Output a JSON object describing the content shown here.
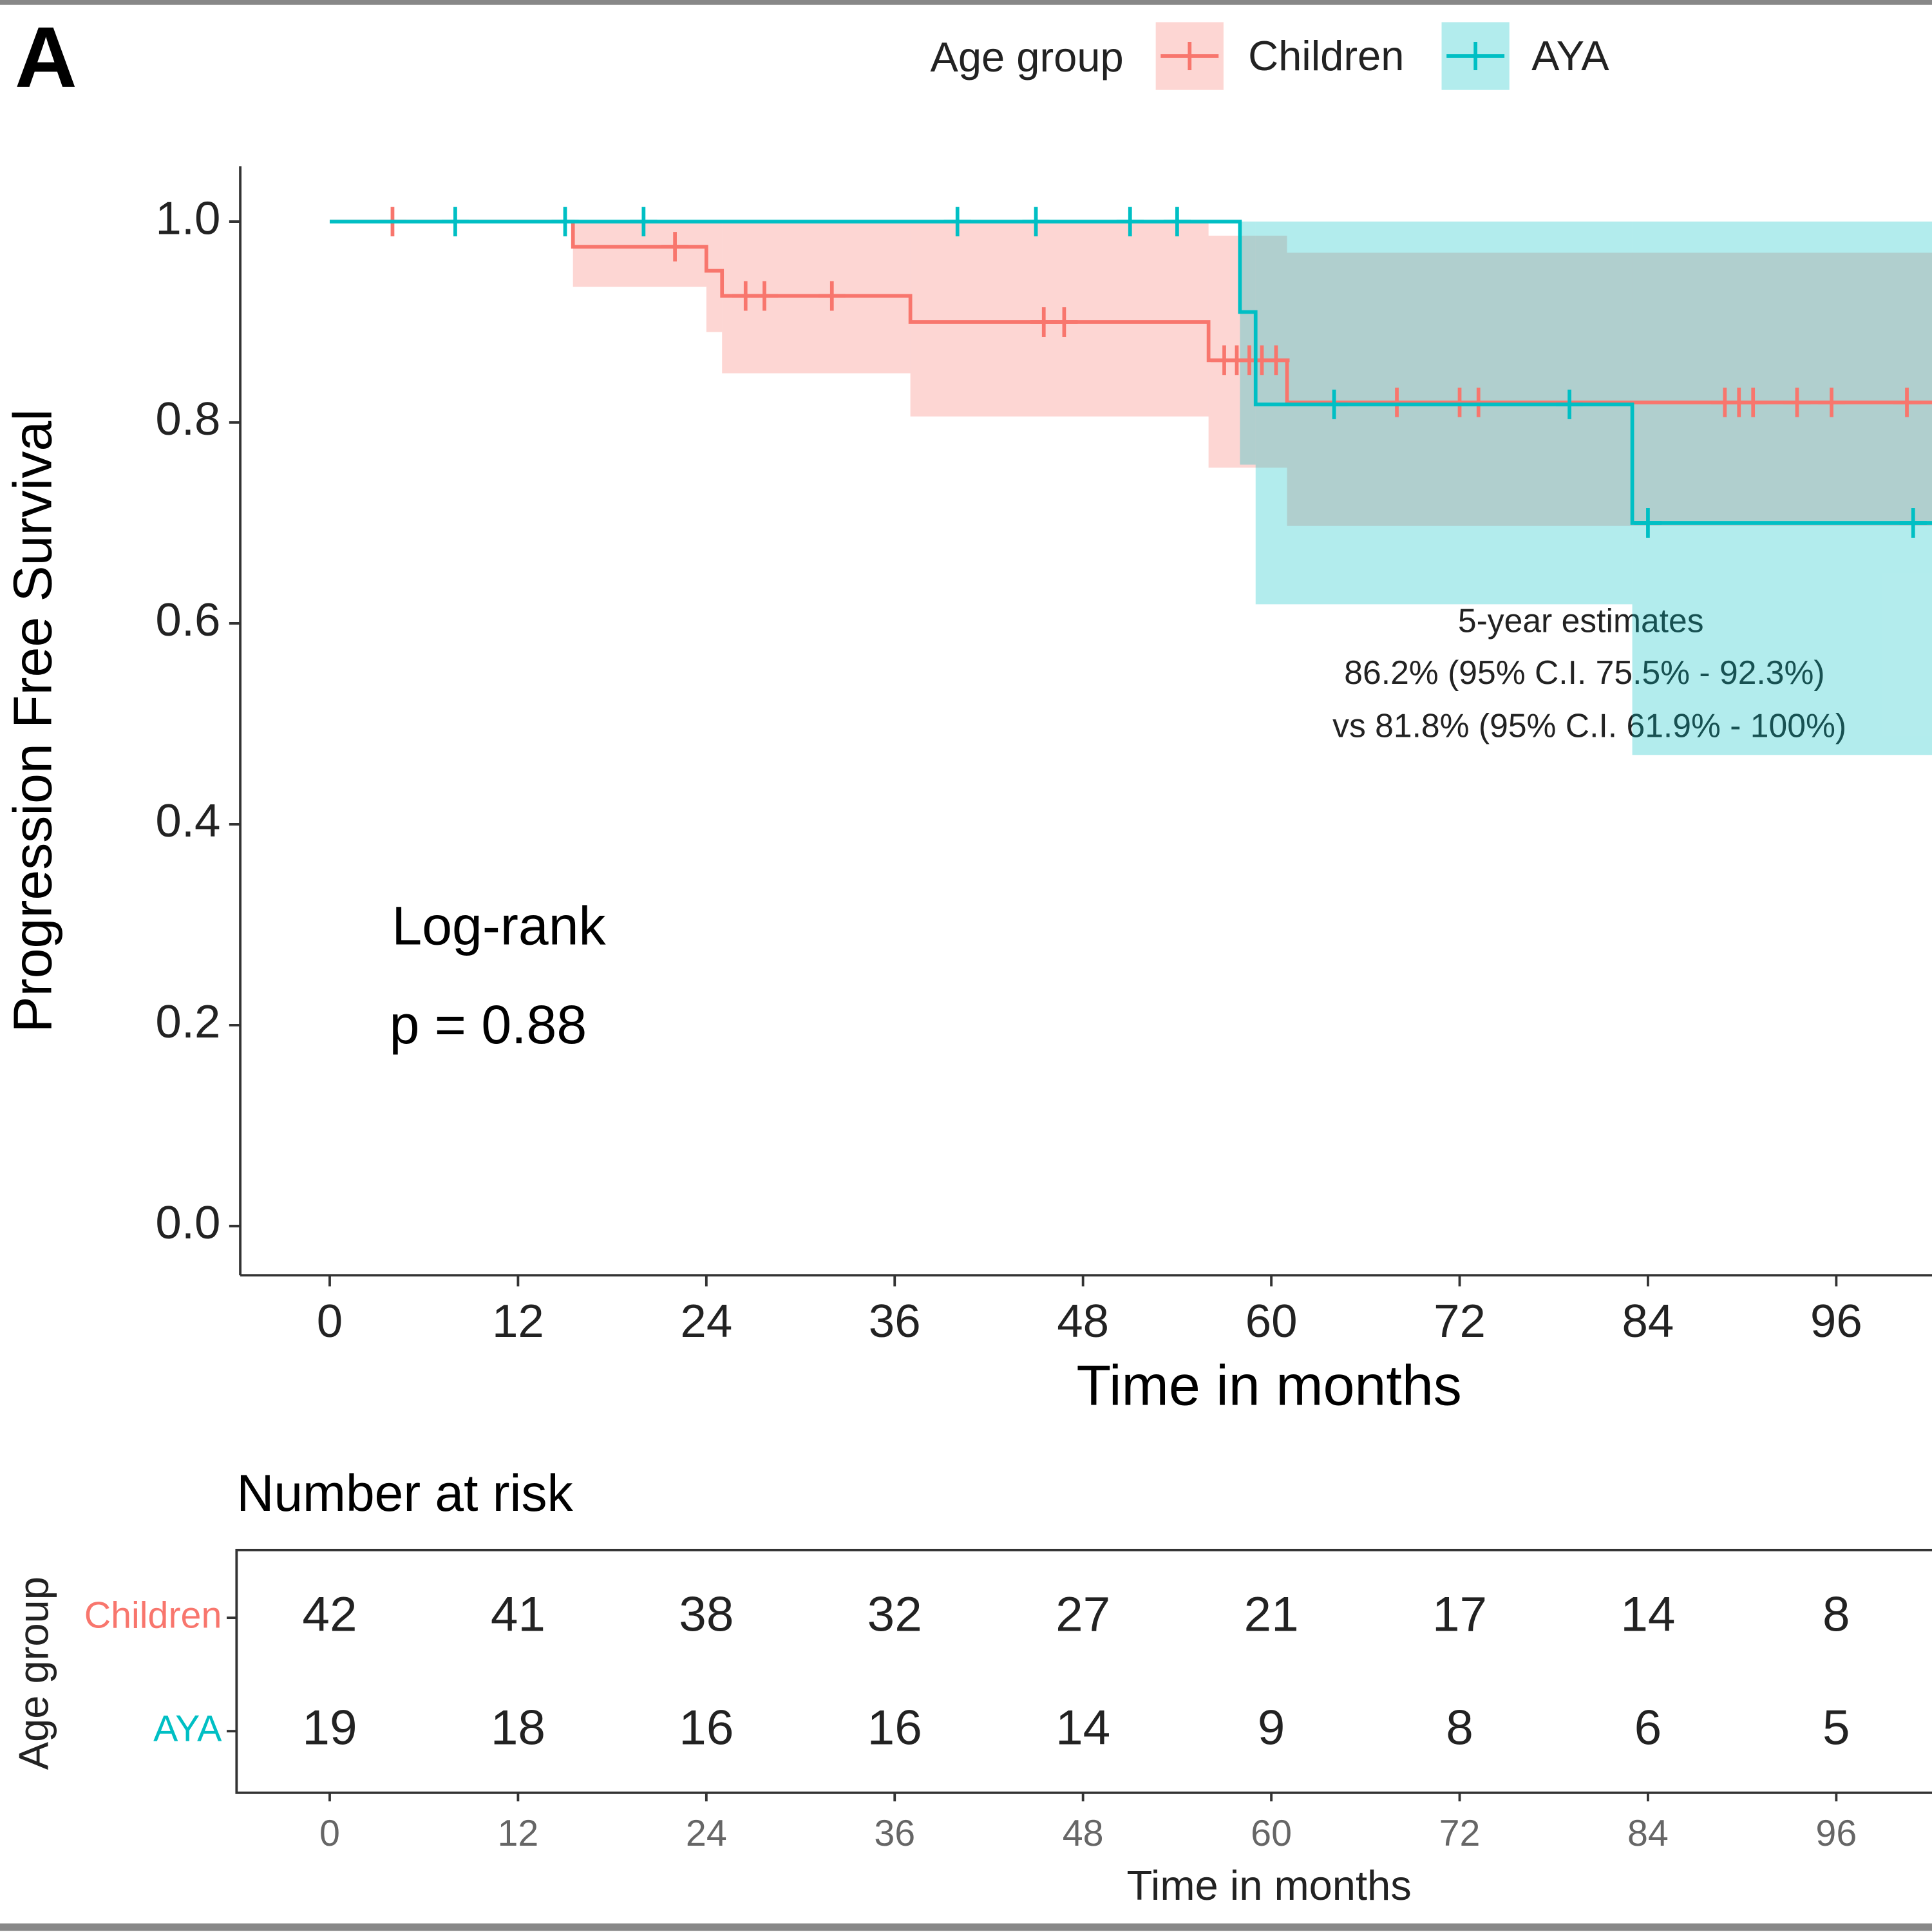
{
  "chart_data": [
    {
      "type": "step",
      "panel_label": "A",
      "legend_title": "Age group",
      "legend_position": "top",
      "xlabel": "Time in months",
      "ylabel": "Progression Free Survival",
      "xlim": [
        -5.7,
        102.1
      ],
      "xticks": [
        0,
        12,
        24,
        36,
        48,
        60,
        72,
        84,
        96
      ],
      "ylim": [
        -0.049,
        1.055
      ],
      "yticks": [
        {
          "value": 0,
          "label": "0.0"
        },
        0.2,
        0.4,
        0.6,
        0.8,
        {
          "value": 1,
          "label": "1.0"
        }
      ],
      "annotations": [
        "Log-rank",
        "p = 0.88",
        "5-year estimates",
        "86.2% (95% C.I. 75.5% - 92.3%)",
        "vs 81.8% (95% C.I. 61.9% - 100%)"
      ],
      "series": [
        {
          "name": "Children",
          "color": "#F8766D",
          "x": [
            0,
            15.5,
            24,
            25,
            37,
            56,
            61
          ],
          "values": [
            1,
            0.975,
            0.951,
            0.926,
            0.9,
            0.862,
            0.82
          ],
          "ci_x": [
            15.5,
            24,
            25,
            37,
            56,
            61
          ],
          "ci_lower": [
            0.935,
            0.89,
            0.849,
            0.806,
            0.755,
            0.697
          ],
          "ci_upper": [
            1,
            1,
            1,
            1,
            0.986,
            0.969
          ],
          "censor_x": [
            4,
            22,
            26.5,
            27.7,
            32,
            45.5,
            46.8,
            57,
            57.8,
            58.6,
            59.4,
            60.3,
            68,
            72,
            73.2,
            88.9,
            89.8,
            90.7,
            93.5,
            95.7,
            100.5
          ],
          "censor_y": [
            1,
            0.975,
            0.926,
            0.926,
            0.926,
            0.9,
            0.9,
            0.862,
            0.862,
            0.862,
            0.862,
            0.862,
            0.82,
            0.82,
            0.82,
            0.82,
            0.82,
            0.82,
            0.82,
            0.82,
            0.82
          ]
        },
        {
          "name": "AYA",
          "color": "#00BFC4",
          "x": [
            0,
            58,
            59,
            83
          ],
          "values": [
            1,
            0.91,
            0.818,
            0.7
          ],
          "ci_x": [
            58,
            59,
            83
          ],
          "ci_lower": [
            0.758,
            0.619,
            0.469
          ],
          "ci_upper": [
            1,
            1,
            1
          ],
          "censor_x": [
            8,
            15,
            20,
            40,
            45,
            51,
            54,
            64,
            79,
            84,
            100.9
          ],
          "censor_y": [
            1,
            1,
            1,
            1,
            1,
            1,
            1,
            0.818,
            0.818,
            0.7,
            0.7
          ]
        }
      ]
    },
    {
      "type": "risk_table",
      "title": "Number at risk",
      "ylabel": "Age group",
      "xlabel": "Time in months",
      "xlim": [
        -5.7,
        102.1
      ],
      "xticks": [
        0,
        12,
        24,
        36,
        48,
        60,
        72,
        84,
        96
      ],
      "series": [
        {
          "name": "Children",
          "color": "#F8766D",
          "values": [
            42,
            41,
            38,
            32,
            27,
            21,
            17,
            14,
            8
          ]
        },
        {
          "name": "AYA",
          "color": "#00BFC4",
          "values": [
            19,
            18,
            16,
            16,
            14,
            9,
            8,
            6,
            5
          ]
        }
      ]
    }
  ]
}
